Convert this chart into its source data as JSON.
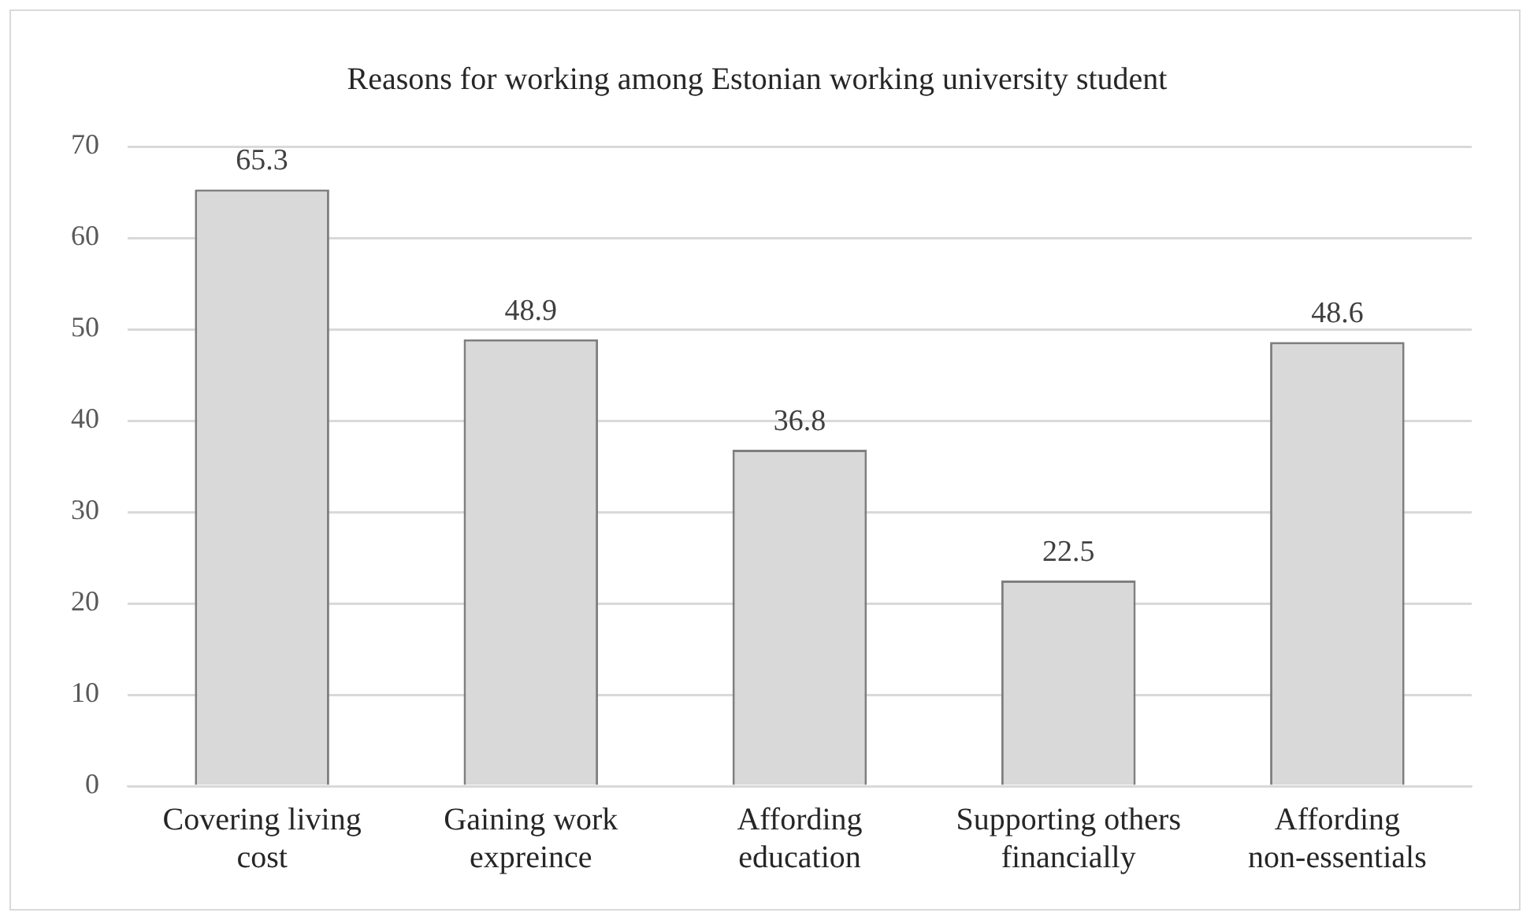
{
  "chart_data": {
    "type": "bar",
    "title": "Reasons for working among Estonian working university student",
    "categories": [
      "Covering living cost",
      "Gaining work expreince",
      "Affording education",
      "Supporting others financially",
      "Affording non-essentials"
    ],
    "values": [
      65.3,
      48.9,
      36.8,
      22.5,
      48.6
    ],
    "color": "#d9d9d9",
    "ylim": [
      0,
      70
    ],
    "yticks": [
      0,
      10,
      20,
      30,
      40,
      50,
      60,
      70
    ],
    "grid": "y",
    "data_labels": true,
    "legend": false
  }
}
